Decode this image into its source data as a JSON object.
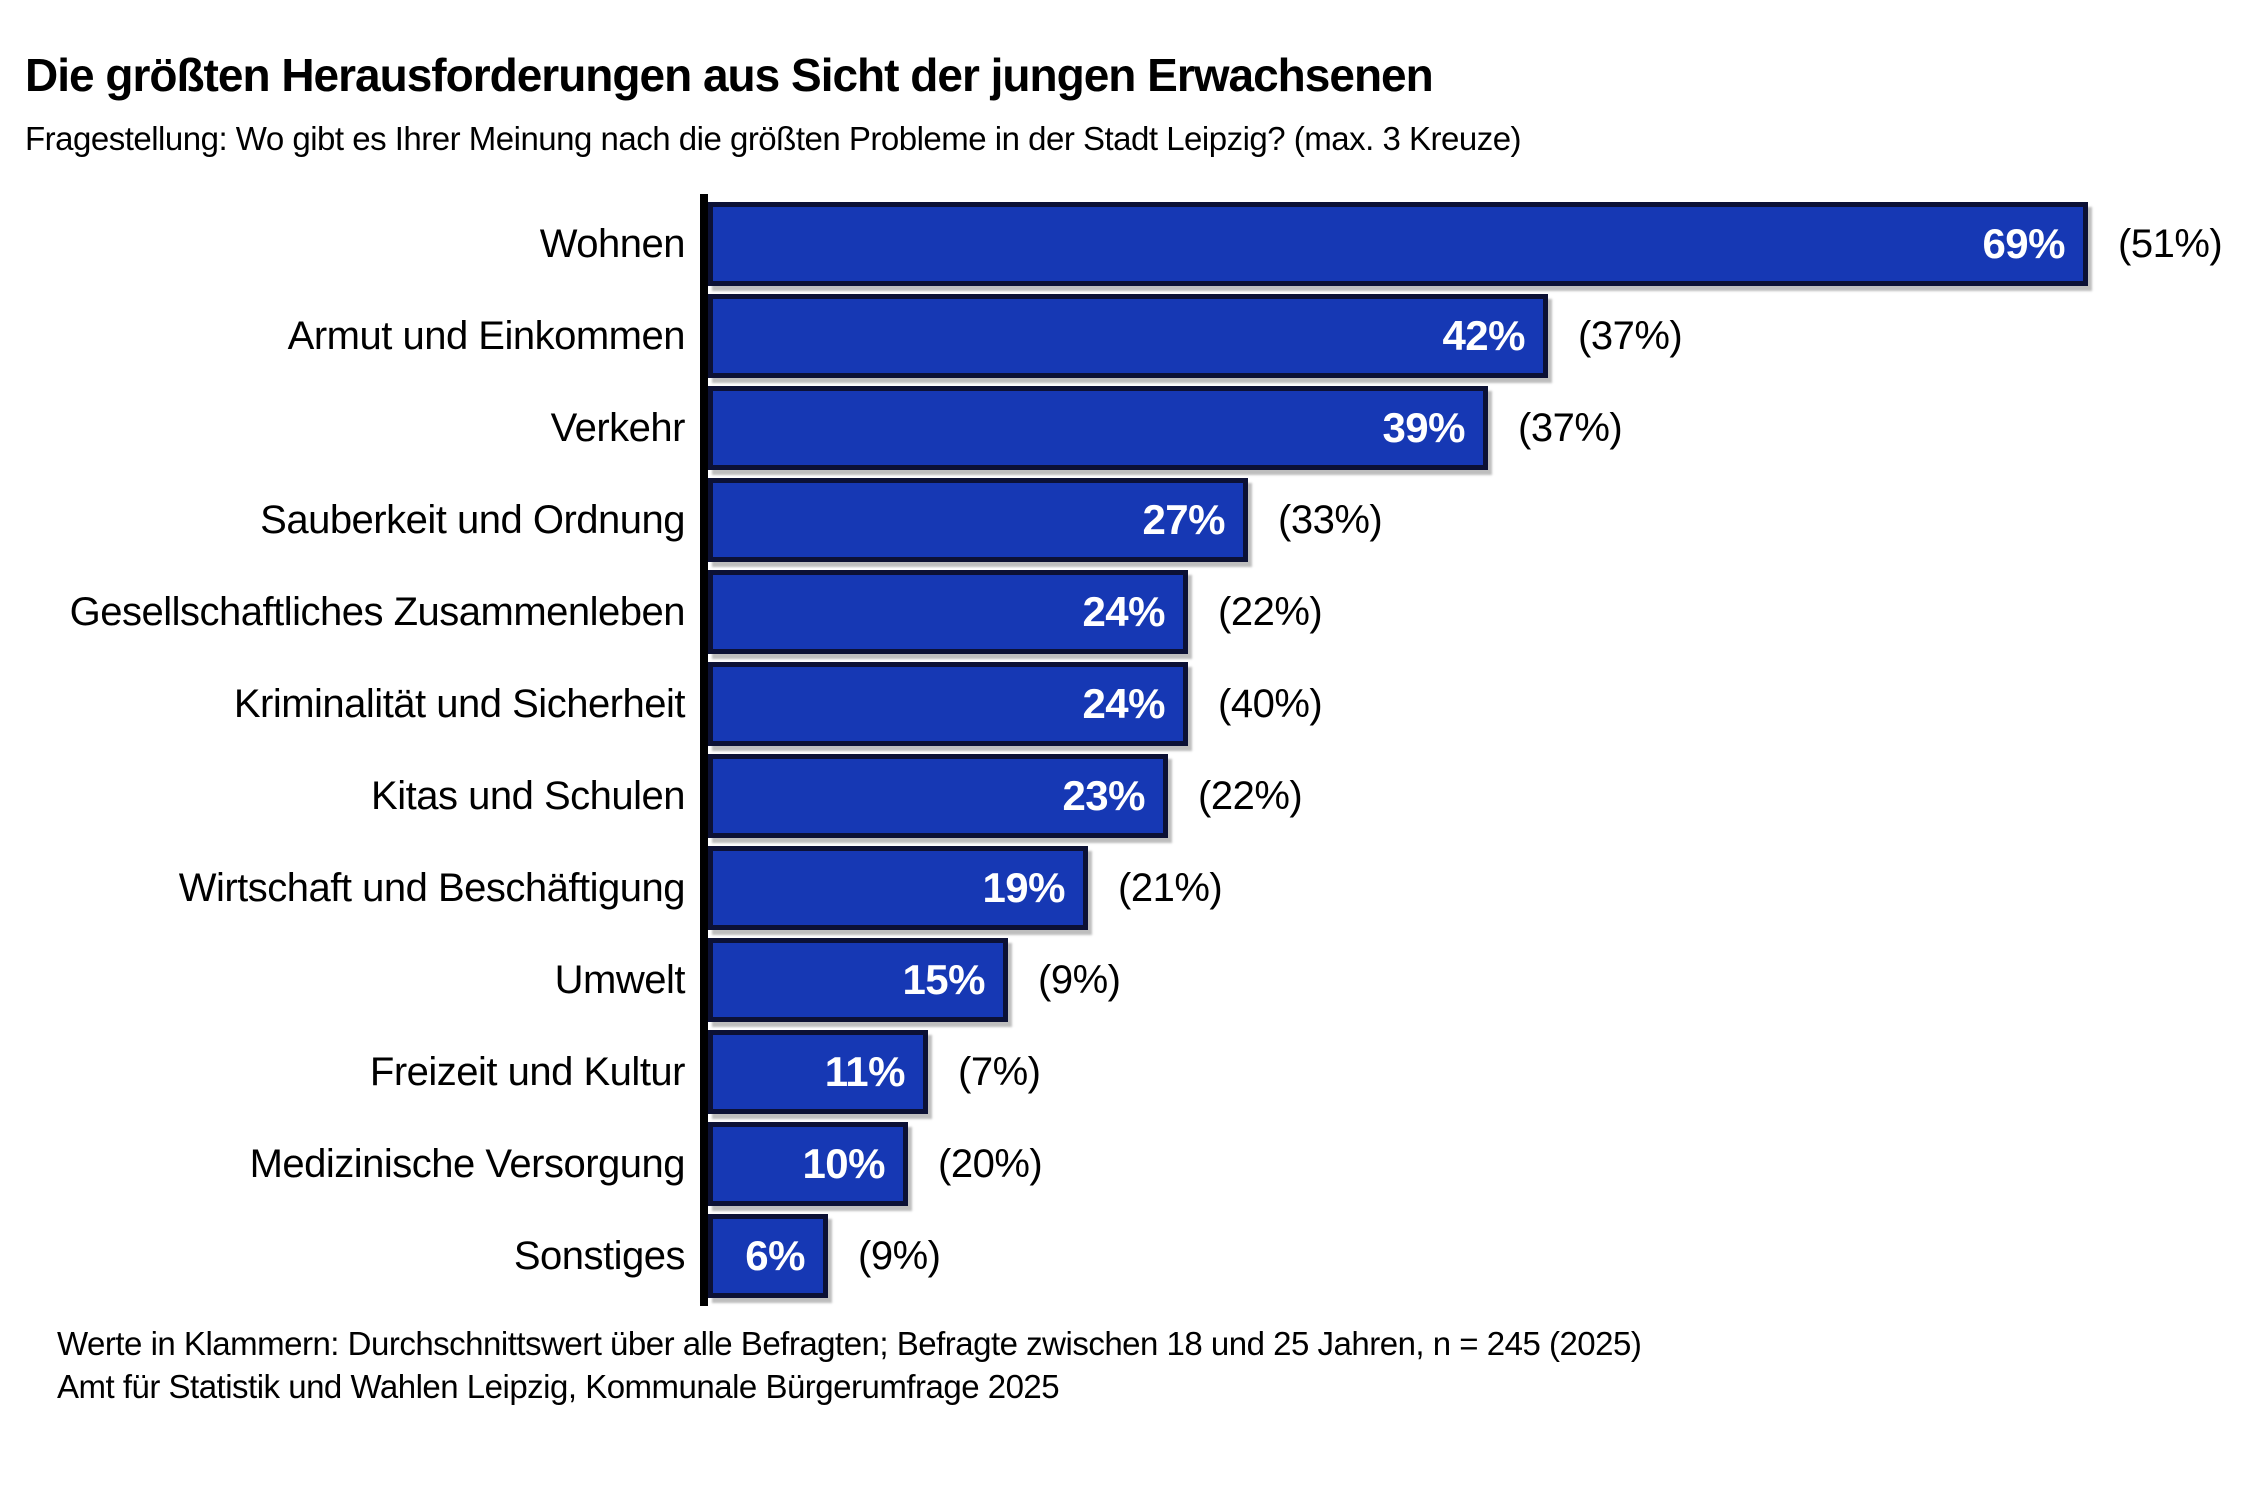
{
  "header": {
    "title": "Die größten Herausforderungen aus Sicht der jungen Erwachsenen",
    "subtitle": "Fragestellung: Wo gibt es Ihrer Meinung nach die größten Probleme in der Stadt Leipzig? (max. 3 Kreuze)"
  },
  "chart_data": {
    "type": "bar",
    "orientation": "horizontal",
    "title": "Die größten Herausforderungen aus Sicht der jungen Erwachsenen",
    "subtitle": "Fragestellung: Wo gibt es Ihrer Meinung nach die größten Probleme in der Stadt Leipzig? (max. 3 Kreuze)",
    "unit": "%",
    "xlim": [
      0,
      70
    ],
    "grid": false,
    "legend": "none",
    "value_label_position": "inside-end",
    "avg_label_position": "outside-end",
    "categories": [
      "Wohnen",
      "Armut und Einkommen",
      "Verkehr",
      "Sauberkeit und Ordnung",
      "Gesellschaftliches Zusammenleben",
      "Kriminalität und Sicherheit",
      "Kitas und Schulen",
      "Wirtschaft und Beschäftigung",
      "Umwelt",
      "Freizeit und Kultur",
      "Medizinische Versorgung",
      "Sonstiges"
    ],
    "rows": [
      {
        "category": "Wohnen",
        "value": 69,
        "value_label": "69%",
        "avg_value": 51,
        "avg_label": "(51%)"
      },
      {
        "category": "Armut und Einkommen",
        "value": 42,
        "value_label": "42%",
        "avg_value": 37,
        "avg_label": "(37%)"
      },
      {
        "category": "Verkehr",
        "value": 39,
        "value_label": "39%",
        "avg_value": 37,
        "avg_label": "(37%)"
      },
      {
        "category": "Sauberkeit und Ordnung",
        "value": 27,
        "value_label": "27%",
        "avg_value": 33,
        "avg_label": "(33%)"
      },
      {
        "category": "Gesellschaftliches Zusammenleben",
        "value": 24,
        "value_label": "24%",
        "avg_value": 22,
        "avg_label": "(22%)"
      },
      {
        "category": "Kriminalität und Sicherheit",
        "value": 24,
        "value_label": "24%",
        "avg_value": 40,
        "avg_label": "(40%)"
      },
      {
        "category": "Kitas und Schulen",
        "value": 23,
        "value_label": "23%",
        "avg_value": 22,
        "avg_label": "(22%)"
      },
      {
        "category": "Wirtschaft und Beschäftigung",
        "value": 19,
        "value_label": "19%",
        "avg_value": 21,
        "avg_label": "(21%)"
      },
      {
        "category": "Umwelt",
        "value": 15,
        "value_label": "15%",
        "avg_value": 9,
        "avg_label": "(9%)"
      },
      {
        "category": "Freizeit und Kultur",
        "value": 11,
        "value_label": "11%",
        "avg_value": 7,
        "avg_label": "(7%)"
      },
      {
        "category": "Medizinische Versorgung",
        "value": 10,
        "value_label": "10%",
        "avg_value": 20,
        "avg_label": "(20%)"
      },
      {
        "category": "Sonstiges",
        "value": 6,
        "value_label": "6%",
        "avg_value": 9,
        "avg_label": "(9%)"
      }
    ],
    "colors": {
      "bar_fill": "#1638b4",
      "bar_border": "#0c1135",
      "bar_value_text": "#ffffff",
      "axis": "#000000",
      "text": "#000000",
      "background": "#ffffff"
    }
  },
  "footer": {
    "note_line1": "Werte in Klammern: Durchschnittswert über alle Befragten; Befragte zwischen 18 und 25 Jahren, n = 245 (2025)",
    "note_line2": "Amt für Statistik und Wahlen Leipzig, Kommunale Bürgerumfrage 2025"
  }
}
